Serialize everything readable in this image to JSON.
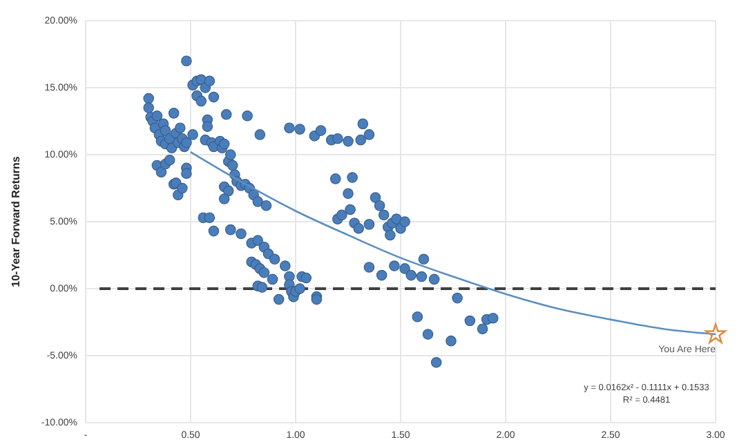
{
  "chart_data": {
    "type": "scatter",
    "ylabel": "10-Year Forward Returns",
    "xlim": [
      0,
      3
    ],
    "xticks": [
      {
        "value": 0,
        "label": "-"
      },
      {
        "value": 0.5,
        "label": "0.50"
      },
      {
        "value": 1,
        "label": "1.00"
      },
      {
        "value": 1.5,
        "label": "1.50"
      },
      {
        "value": 2,
        "label": "2.00"
      },
      {
        "value": 2.5,
        "label": "2.50"
      },
      {
        "value": 3,
        "label": "3.00"
      }
    ],
    "ylim": [
      -10,
      20
    ],
    "yticks": [
      {
        "value": -10,
        "label": "-10.00%"
      },
      {
        "value": -5,
        "label": "-5.00%"
      },
      {
        "value": 0,
        "label": "0.00%"
      },
      {
        "value": 5,
        "label": "5.00%"
      },
      {
        "value": 10,
        "label": "10.00%"
      },
      {
        "value": 15,
        "label": "15.00%"
      },
      {
        "value": 20,
        "label": "20.00%"
      }
    ],
    "grid": true,
    "ref_lines": [
      {
        "axis": "y",
        "value": 0,
        "label": null,
        "color": "#404040",
        "line_style": "dashed"
      }
    ],
    "annotations": [
      {
        "text": "You Are Here",
        "x": 3,
        "y": -3.4
      },
      "y = 0.0162x² - 0.1111x + 0.1533",
      "R² = 0.4481"
    ],
    "series": [
      {
        "type": "scatter",
        "color": "#4a7ebb",
        "marker": "circle",
        "x": [
          0.3,
          0.3,
          0.31,
          0.32,
          0.33,
          0.34,
          0.35,
          0.36,
          0.37,
          0.38,
          0.38,
          0.4,
          0.41,
          0.42,
          0.43,
          0.44,
          0.45,
          0.46,
          0.47,
          0.48,
          0.34,
          0.36,
          0.38,
          0.4,
          0.42,
          0.43,
          0.44,
          0.46,
          0.48,
          0.48,
          0.51,
          0.48,
          0.51,
          0.53,
          0.55,
          0.57,
          0.59,
          0.61,
          0.53,
          0.55,
          0.58,
          0.58,
          0.57,
          0.6,
          0.61,
          0.64,
          0.65,
          0.66,
          0.67,
          0.68,
          0.69,
          0.7,
          0.71,
          0.72,
          0.74,
          0.76,
          0.78,
          0.8,
          0.82,
          0.86,
          0.77,
          0.83,
          0.97,
          0.66,
          0.68,
          0.66,
          0.56,
          0.59,
          0.61,
          0.69,
          0.74,
          0.79,
          0.82,
          0.85,
          0.87,
          0.9,
          0.79,
          0.81,
          0.83,
          0.85,
          0.82,
          0.84,
          0.89,
          0.92,
          0.95,
          0.97,
          0.97,
          0.98,
          0.99,
          1.0,
          1.02,
          1.03,
          1.05,
          1.1,
          1.1,
          1.02,
          1.09,
          1.12,
          1.17,
          1.2,
          1.25,
          1.32,
          1.35,
          1.31,
          1.19,
          1.27,
          1.25,
          1.26,
          1.2,
          1.22,
          1.28,
          1.3,
          1.35,
          1.38,
          1.4,
          1.42,
          1.44,
          1.46,
          1.48,
          1.5,
          1.52,
          1.45,
          1.35,
          1.41,
          1.47,
          1.52,
          1.55,
          1.6,
          1.61,
          1.66,
          1.77,
          1.58,
          1.63,
          1.67,
          1.74,
          1.83,
          1.89,
          1.91,
          1.94
        ],
        "values": [
          14.2,
          13.5,
          12.8,
          12.5,
          12,
          12.9,
          11.5,
          11,
          12.3,
          10.8,
          11.8,
          11.2,
          10.5,
          13.1,
          11.6,
          10.9,
          12,
          11.2,
          10.6,
          10.9,
          9.2,
          8.7,
          9.3,
          9.6,
          7.8,
          7.9,
          7,
          7.5,
          9,
          8.6,
          11.5,
          17,
          15.2,
          15.5,
          15.6,
          15,
          15.5,
          14.3,
          14.4,
          14,
          12.6,
          12.1,
          11.1,
          10.9,
          10.6,
          11,
          10.5,
          10.8,
          13,
          9.5,
          10,
          9.2,
          8.5,
          8,
          7.7,
          7.8,
          7.5,
          7,
          6.5,
          6.2,
          12.9,
          11.5,
          12,
          7.6,
          7.3,
          6.7,
          5.3,
          5.3,
          4.3,
          4.4,
          4.1,
          3.4,
          3.6,
          3.1,
          2.6,
          2.2,
          2,
          1.8,
          1.5,
          1.2,
          0.2,
          0.1,
          0.7,
          -0.8,
          1.7,
          0.9,
          0.3,
          -0.2,
          -0.6,
          -0.2,
          0,
          0.9,
          0.8,
          -0.6,
          -0.8,
          11.9,
          11.4,
          11.8,
          11.1,
          11.2,
          11,
          12.3,
          11.5,
          11.1,
          8.2,
          8.3,
          7.1,
          5.9,
          5.2,
          5.5,
          4.9,
          4.5,
          4.8,
          6.8,
          6.2,
          5.5,
          4.6,
          4.9,
          5.2,
          4.5,
          5,
          4,
          1.6,
          1,
          1.7,
          1.5,
          1,
          0.9,
          2.2,
          0.7,
          -0.7,
          -2.1,
          -3.4,
          -5.5,
          -3.9,
          -2.4,
          -3,
          -2.3,
          -2.2
        ]
      },
      {
        "type": "line",
        "color": "#5b8fc0",
        "line_style": "solid",
        "x": [
          0.5,
          0.75,
          1,
          1.25,
          1.5,
          1.75,
          2,
          2.25,
          2.5,
          2.75,
          3
        ],
        "values": [
          10.2,
          7.9,
          5.8,
          4,
          2.3,
          0.9,
          -0.4,
          -1.5,
          -2.3,
          -3,
          -3.4
        ]
      },
      {
        "type": "scatter",
        "color": "#e08a3c",
        "marker": "star",
        "x": [
          3
        ],
        "values": [
          -3.4
        ]
      }
    ]
  }
}
